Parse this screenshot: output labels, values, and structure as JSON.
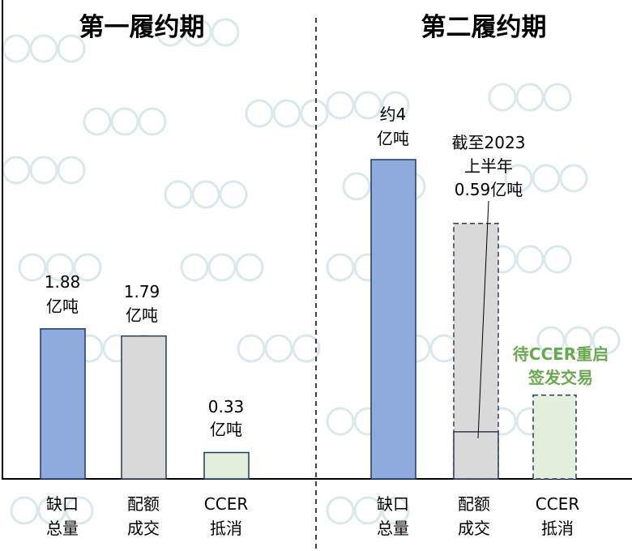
{
  "colors": {
    "shortfall": "#8faadc",
    "shortfall_stroke": "#1f3864",
    "allowance": "#d9d9d9",
    "allowance_stroke": "#2f3b55",
    "ccer": "#e2efda",
    "ccer_stroke": "#1f3864",
    "green_text": "#6aa84f",
    "axis": "#000000"
  },
  "chart_data": [
    {
      "type": "bar",
      "title": "第一履约期",
      "ylim": [
        0,
        4.6
      ],
      "categories": [
        {
          "line1": "缺口",
          "line2": "总量"
        },
        {
          "line1": "配额",
          "line2": "成交"
        },
        {
          "line1": "CCER",
          "line2": "抵消"
        }
      ],
      "values": [
        1.88,
        1.79,
        0.33
      ],
      "data_labels": [
        {
          "line1": "1.88",
          "line2": "亿吨"
        },
        {
          "line1": "1.79",
          "line2": "亿吨"
        },
        {
          "line1": "0.33",
          "line2": "亿吨"
        }
      ]
    },
    {
      "type": "bar",
      "title": "第二履约期",
      "ylim": [
        0,
        4.6
      ],
      "categories": [
        {
          "line1": "缺口",
          "line2": "总量"
        },
        {
          "line1": "配额",
          "line2": "成交"
        },
        {
          "line1": "CCER",
          "line2": "抵消"
        }
      ],
      "values": [
        4,
        0.59,
        null
      ],
      "projected_values": [
        null,
        3.2,
        1.05
      ],
      "data_labels": [
        {
          "line1": "约4",
          "line2": "亿吨"
        }
      ],
      "annotation": {
        "line1": "截至2023",
        "line2": "上半年",
        "line3": "0.59亿吨"
      },
      "pending_note": {
        "line1": "待CCER重启",
        "line2": "签发交易"
      }
    }
  ]
}
